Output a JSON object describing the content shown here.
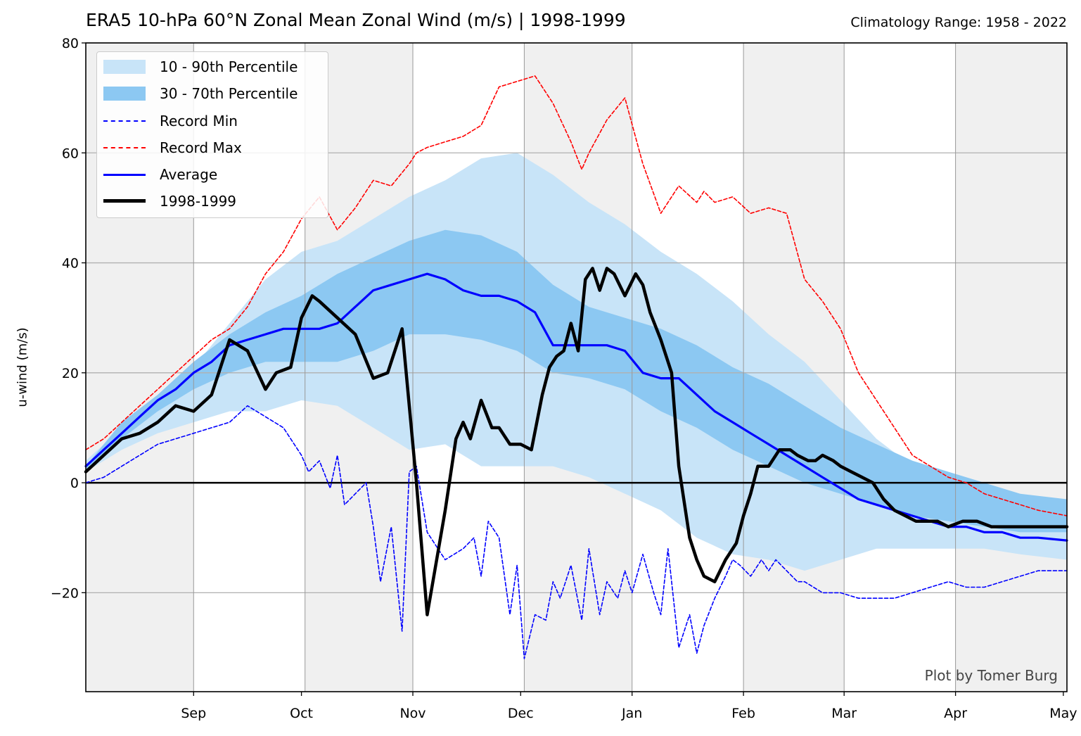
{
  "header": {
    "title": "ERA5 10-hPa 60°N Zonal Mean Zonal Wind (m/s) | 1998-1999",
    "subtitle": "Climatology Range: 1958 - 2022",
    "credit": "Plot by Tomer Burg"
  },
  "legend": {
    "items": [
      {
        "label": "10 - 90th Percentile",
        "kind": "fill",
        "color": "#c8e4f8"
      },
      {
        "label": "30 - 70th Percentile",
        "kind": "fill",
        "color": "#8cc8f2"
      },
      {
        "label": "Record Min",
        "kind": "dashed",
        "color": "#0000ff"
      },
      {
        "label": "Record Max",
        "kind": "dashed",
        "color": "#ff0000"
      },
      {
        "label": "Average",
        "kind": "line",
        "color": "#0000ff"
      },
      {
        "label": "1998-1999",
        "kind": "line",
        "color": "#000000"
      }
    ]
  },
  "chart_data": {
    "type": "line",
    "title": "ERA5 10-hPa 60°N Zonal Mean Zonal Wind (m/s) | 1998-1999",
    "subtitle": "Climatology Range: 1958 - 2022",
    "ylabel": "u-wind (m/s)",
    "xlabel": "",
    "ylim": [
      -38,
      80
    ],
    "yticks": [
      -20,
      0,
      20,
      40,
      60,
      80
    ],
    "ytick_labels": [
      "−20",
      "0",
      "20",
      "40",
      "60",
      "80"
    ],
    "x_unit": "day of season starting 1998-08-16",
    "xlim": [
      0,
      273
    ],
    "months": [
      {
        "label": "Sep",
        "mid": 30
      },
      {
        "label": "Oct",
        "mid": 60
      },
      {
        "label": "Nov",
        "mid": 91
      },
      {
        "label": "Dec",
        "mid": 121
      },
      {
        "label": "Jan",
        "mid": 152
      },
      {
        "label": "Feb",
        "mid": 183
      },
      {
        "label": "Mar",
        "mid": 211
      },
      {
        "label": "Apr",
        "mid": 242
      },
      {
        "label": "May",
        "mid": 272
      }
    ],
    "shaded_periods": [
      [
        0,
        30
      ],
      [
        61,
        91
      ],
      [
        122,
        152
      ],
      [
        183,
        211
      ],
      [
        242,
        273
      ]
    ],
    "grid": true,
    "zero_line": true,
    "legend_position": "top-left",
    "colors": {
      "p10_90": "#c8e4f8",
      "p30_70": "#8cc8f2",
      "record_min": "#0000ff",
      "record_max": "#ff0000",
      "average": "#0000ff",
      "season": "#000000",
      "period_shade": "#f0f0f0"
    },
    "series": [
      {
        "name": "Record Max",
        "style": "dashed",
        "x": [
          0,
          5,
          10,
          15,
          20,
          25,
          30,
          35,
          40,
          45,
          50,
          55,
          60,
          65,
          70,
          75,
          80,
          85,
          90,
          92,
          95,
          100,
          105,
          110,
          115,
          120,
          125,
          130,
          135,
          138,
          140,
          145,
          150,
          155,
          160,
          165,
          170,
          172,
          175,
          180,
          185,
          190,
          195,
          200,
          205,
          210,
          215,
          220,
          225,
          230,
          235,
          240,
          245,
          250,
          255,
          260,
          265,
          273
        ],
        "y": [
          6,
          8,
          11,
          14,
          17,
          20,
          23,
          26,
          28,
          32,
          38,
          42,
          48,
          52,
          46,
          50,
          55,
          54,
          58,
          60,
          61,
          62,
          63,
          65,
          72,
          73,
          74,
          69,
          62,
          57,
          60,
          66,
          70,
          58,
          49,
          54,
          51,
          53,
          51,
          52,
          49,
          50,
          49,
          37,
          33,
          28,
          20,
          15,
          10,
          5,
          3,
          1,
          0,
          -2,
          -3,
          -4,
          -5,
          -6
        ]
      },
      {
        "name": "Record Min",
        "style": "dashed",
        "x": [
          0,
          5,
          10,
          15,
          20,
          25,
          30,
          35,
          40,
          45,
          50,
          55,
          60,
          62,
          65,
          68,
          70,
          72,
          75,
          78,
          80,
          82,
          85,
          88,
          90,
          92,
          95,
          100,
          105,
          108,
          110,
          112,
          115,
          118,
          120,
          122,
          125,
          128,
          130,
          132,
          135,
          138,
          140,
          143,
          145,
          148,
          150,
          152,
          155,
          158,
          160,
          162,
          165,
          168,
          170,
          172,
          175,
          178,
          180,
          182,
          185,
          188,
          190,
          192,
          195,
          198,
          200,
          205,
          210,
          215,
          220,
          225,
          230,
          235,
          240,
          245,
          250,
          255,
          260,
          265,
          273
        ],
        "y": [
          0,
          1,
          3,
          5,
          7,
          8,
          9,
          10,
          11,
          14,
          12,
          10,
          5,
          2,
          4,
          -1,
          5,
          -4,
          -2,
          0,
          -8,
          -18,
          -8,
          -27,
          2,
          3,
          -9,
          -14,
          -12,
          -10,
          -17,
          -7,
          -10,
          -24,
          -15,
          -32,
          -24,
          -25,
          -18,
          -21,
          -15,
          -25,
          -12,
          -24,
          -18,
          -21,
          -16,
          -20,
          -13,
          -20,
          -24,
          -12,
          -30,
          -24,
          -31,
          -26,
          -21,
          -17,
          -14,
          -15,
          -17,
          -14,
          -16,
          -14,
          -16,
          -18,
          -18,
          -20,
          -20,
          -21,
          -21,
          -21,
          -20,
          -19,
          -18,
          -19,
          -19,
          -18,
          -17,
          -16,
          -16
        ]
      },
      {
        "name": "Average",
        "style": "solid",
        "x": [
          0,
          5,
          10,
          15,
          20,
          25,
          30,
          35,
          40,
          45,
          50,
          55,
          60,
          65,
          70,
          75,
          80,
          85,
          90,
          95,
          100,
          105,
          110,
          115,
          120,
          125,
          130,
          135,
          140,
          145,
          150,
          155,
          160,
          165,
          170,
          175,
          180,
          185,
          190,
          195,
          200,
          205,
          210,
          215,
          220,
          225,
          230,
          235,
          240,
          245,
          250,
          255,
          260,
          265,
          273
        ],
        "y": [
          3,
          6,
          9,
          12,
          15,
          17,
          20,
          22,
          25,
          26,
          27,
          28,
          28,
          28,
          29,
          32,
          35,
          36,
          37,
          38,
          37,
          35,
          34,
          34,
          33,
          31,
          25,
          25,
          25,
          25,
          24,
          20,
          19,
          19,
          16,
          13,
          11,
          9,
          7,
          5,
          3,
          1,
          -1,
          -3,
          -4,
          -5,
          -6,
          -7,
          -8,
          -8,
          -9,
          -9,
          -10,
          -10,
          -10.5
        ]
      },
      {
        "name": "10th Percentile",
        "style": "band-low",
        "x": [
          0,
          10,
          20,
          30,
          40,
          50,
          60,
          70,
          80,
          90,
          100,
          110,
          120,
          130,
          140,
          150,
          160,
          170,
          180,
          190,
          200,
          210,
          220,
          230,
          240,
          250,
          260,
          273
        ],
        "y": [
          2,
          6,
          9,
          11,
          13,
          13,
          15,
          14,
          10,
          6,
          7,
          3,
          3,
          3,
          1,
          -2,
          -5,
          -10,
          -13,
          -14,
          -16,
          -14,
          -12,
          -12,
          -12,
          -12,
          -13,
          -14
        ]
      },
      {
        "name": "90th Percentile",
        "style": "band-high",
        "x": [
          0,
          10,
          20,
          30,
          40,
          50,
          60,
          70,
          80,
          90,
          100,
          110,
          120,
          130,
          140,
          150,
          160,
          170,
          180,
          190,
          200,
          210,
          220,
          230,
          240,
          250,
          260,
          273
        ],
        "y": [
          4,
          10,
          14,
          21,
          29,
          37,
          42,
          44,
          48,
          52,
          55,
          59,
          60,
          56,
          51,
          47,
          42,
          38,
          33,
          27,
          22,
          15,
          8,
          3,
          -1,
          -4,
          -6,
          -7
        ]
      },
      {
        "name": "30th Percentile",
        "style": "band-low",
        "x": [
          0,
          10,
          20,
          30,
          40,
          50,
          60,
          70,
          80,
          90,
          100,
          110,
          120,
          130,
          140,
          150,
          160,
          170,
          180,
          190,
          200,
          210,
          220,
          230,
          240,
          250,
          260,
          273
        ],
        "y": [
          2,
          8,
          13,
          17,
          20,
          22,
          22,
          22,
          24,
          27,
          27,
          26,
          24,
          20,
          19,
          17,
          13,
          10,
          6,
          3,
          0,
          -2,
          -4,
          -6,
          -7,
          -8,
          -9,
          -9
        ]
      },
      {
        "name": "70th Percentile",
        "style": "band-high",
        "x": [
          0,
          10,
          20,
          30,
          40,
          50,
          60,
          70,
          80,
          90,
          100,
          110,
          120,
          130,
          140,
          150,
          160,
          170,
          180,
          190,
          200,
          210,
          220,
          230,
          240,
          250,
          260,
          273
        ],
        "y": [
          3,
          11,
          16,
          22,
          27,
          31,
          34,
          38,
          41,
          44,
          46,
          45,
          42,
          36,
          32,
          30,
          28,
          25,
          21,
          18,
          14,
          10,
          7,
          4,
          2,
          0,
          -2,
          -3
        ]
      },
      {
        "name": "1998-1999",
        "style": "thick",
        "x": [
          0,
          5,
          10,
          15,
          20,
          25,
          30,
          35,
          40,
          45,
          50,
          53,
          57,
          60,
          63,
          65,
          70,
          75,
          80,
          84,
          88,
          92,
          95,
          100,
          103,
          105,
          107,
          110,
          113,
          115,
          118,
          121,
          124,
          127,
          129,
          131,
          133,
          135,
          137,
          139,
          141,
          143,
          145,
          147,
          150,
          153,
          155,
          157,
          160,
          163,
          165,
          168,
          170,
          172,
          175,
          178,
          181,
          183,
          185,
          187,
          190,
          193,
          196,
          198,
          201,
          203,
          205,
          208,
          210,
          213,
          216,
          219,
          222,
          225,
          228,
          231,
          234,
          237,
          240,
          244,
          248,
          252,
          256,
          260,
          264,
          268,
          273
        ],
        "y": [
          2,
          5,
          8,
          9,
          11,
          14,
          13,
          16,
          26,
          24,
          17,
          20,
          21,
          30,
          34,
          33,
          30,
          27,
          19,
          20,
          28,
          0,
          -24,
          -5,
          8,
          11,
          8,
          15,
          10,
          10,
          7,
          7,
          6,
          16,
          21,
          23,
          24,
          29,
          24,
          37,
          39,
          35,
          39,
          38,
          34,
          38,
          36,
          31,
          26,
          20,
          3,
          -10,
          -14,
          -17,
          -18,
          -14,
          -11,
          -6,
          -2,
          3,
          3,
          6,
          6,
          5,
          4,
          4,
          5,
          4,
          3,
          2,
          1,
          0,
          -3,
          -5,
          -6,
          -7,
          -7,
          -7,
          -8,
          -7,
          -7,
          -8,
          -8,
          -8,
          -8,
          -8,
          -8
        ]
      }
    ]
  }
}
